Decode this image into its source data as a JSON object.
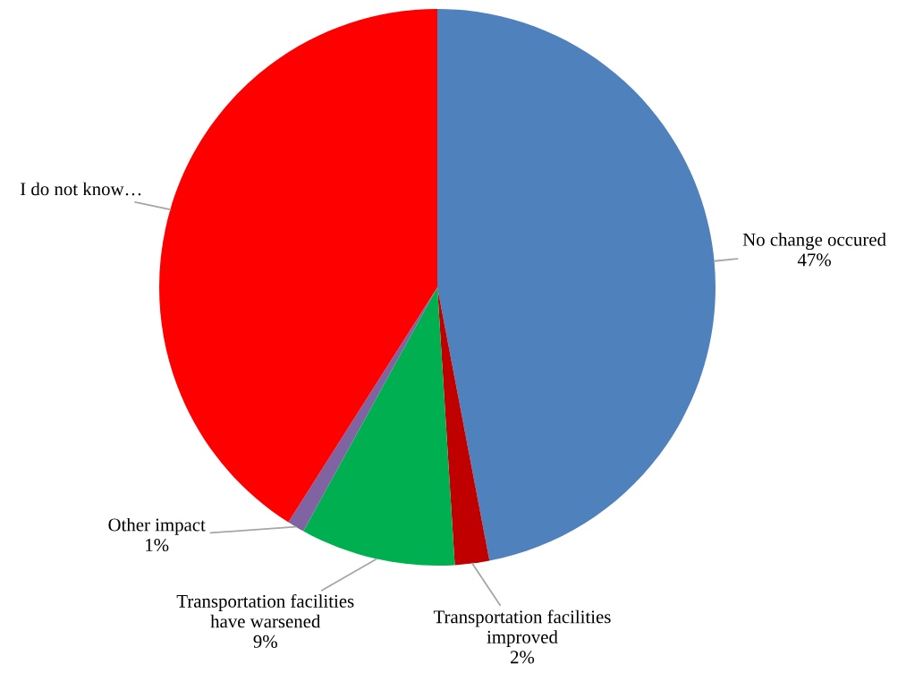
{
  "chart_data": {
    "type": "pie",
    "categories": [
      "No change occured",
      "Transportation facilities improved",
      "Transportation facilities have warsened",
      "Other impact",
      "I do not know…"
    ],
    "values": [
      47,
      2,
      9,
      1,
      41
    ],
    "colors": [
      "#4f81bd",
      "#c00000",
      "#00b050",
      "#8064a2",
      "#ff0000"
    ],
    "value_labels": [
      "47%",
      "2%",
      "9%",
      "1%",
      null
    ]
  }
}
